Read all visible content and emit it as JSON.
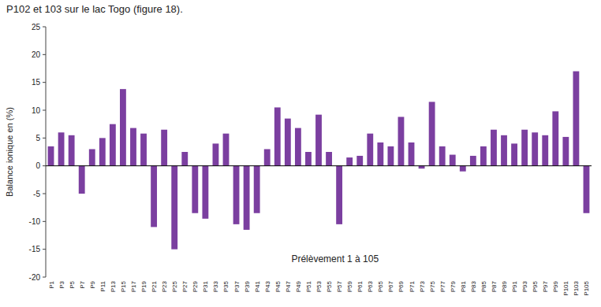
{
  "chart_data": {
    "type": "bar",
    "title": "P102 et 103 sur le lac Togo (figure 18).",
    "annotation": "Prélèvement 1 à 105",
    "ylabel": "Balance ionique en (%)",
    "color": "#7B3FA0",
    "ylim": [
      -20,
      25
    ],
    "yticks": [
      -20,
      -15,
      -10,
      -5,
      0,
      5,
      10,
      15,
      20,
      25
    ],
    "grid": false,
    "categories": [
      "P1",
      "P3",
      "P5",
      "P7",
      "P9",
      "P11",
      "P13",
      "P15",
      "P17",
      "P19",
      "P21",
      "P23",
      "P25",
      "P27",
      "P29",
      "P31",
      "P33",
      "P35",
      "P37",
      "P39",
      "P41",
      "P43",
      "P45",
      "P47",
      "P49",
      "P51",
      "P53",
      "P55",
      "P57",
      "P59",
      "P61",
      "P63",
      "P65",
      "P67",
      "P69",
      "P71",
      "P73",
      "P75",
      "P77",
      "P79",
      "P81",
      "P83",
      "P85",
      "P87",
      "P89",
      "P91",
      "P93",
      "P95",
      "P97",
      "P99",
      "P101",
      "P103",
      "P105"
    ],
    "values": [
      3.5,
      6.0,
      5.5,
      -5.0,
      3.0,
      5.0,
      7.5,
      13.8,
      6.8,
      5.8,
      -11.0,
      6.5,
      -15.0,
      2.5,
      -8.5,
      -9.5,
      4.0,
      5.8,
      -10.5,
      -11.5,
      -8.5,
      3.0,
      10.5,
      8.5,
      6.8,
      2.5,
      9.2,
      2.5,
      -10.5,
      1.5,
      1.8,
      5.8,
      4.2,
      3.5,
      8.8,
      4.2,
      -0.5,
      11.5,
      3.5,
      2.0,
      -1.0,
      1.8,
      3.5,
      6.5,
      5.5,
      4.0,
      6.5,
      6.0,
      5.5,
      9.8,
      5.2,
      17.0,
      -8.5
    ]
  }
}
